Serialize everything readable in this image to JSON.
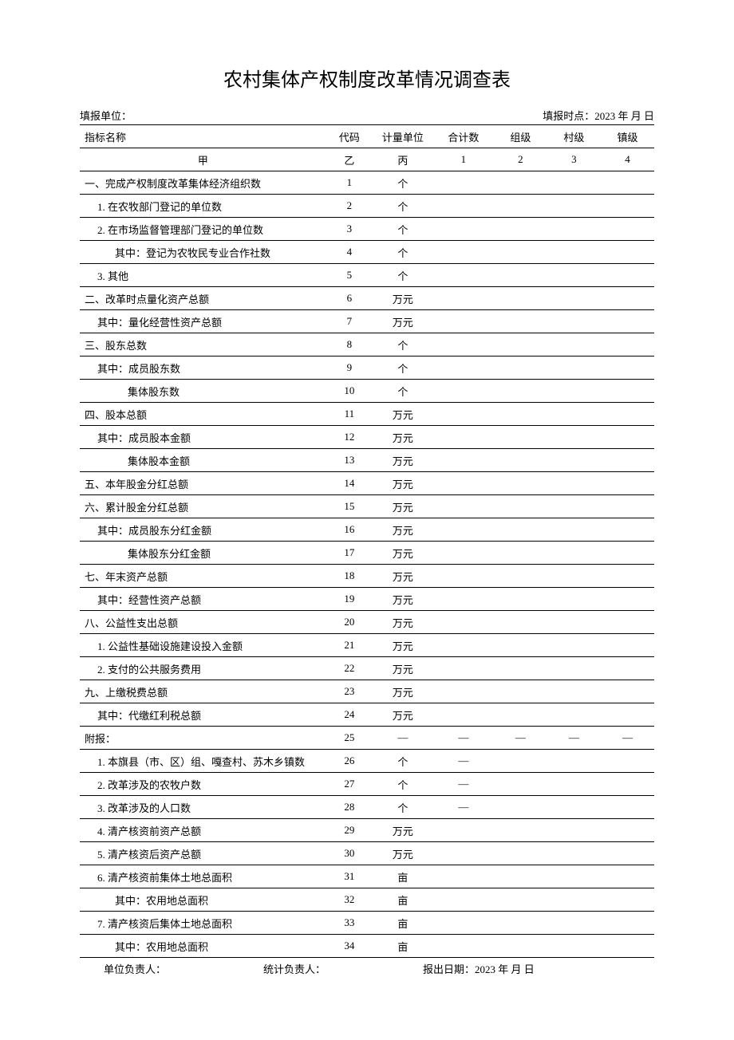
{
  "title": "农村集体产权制度改革情况调查表",
  "meta": {
    "fill_unit_label": "填报单位：",
    "fill_time_label": "填报时点：2023 年 月 日"
  },
  "header": {
    "name": "指标名称",
    "code": "代码",
    "unit": "计量单位",
    "total": "合计数",
    "group": "组级",
    "village": "村级",
    "town": "镇级"
  },
  "subheader": {
    "name": "甲",
    "code": "乙",
    "unit": "丙",
    "total": "1",
    "group": "2",
    "village": "3",
    "town": "4"
  },
  "rows": [
    {
      "name": "一、完成产权制度改革集体经济组织数",
      "code": "1",
      "unit": "个",
      "indent": "left",
      "total": "",
      "group": "",
      "village": "",
      "town": ""
    },
    {
      "name": "1. 在农牧部门登记的单位数",
      "code": "2",
      "unit": "个",
      "indent": "indent1",
      "total": "",
      "group": "",
      "village": "",
      "town": ""
    },
    {
      "name": "2. 在市场监督管理部门登记的单位数",
      "code": "3",
      "unit": "个",
      "indent": "indent1",
      "total": "",
      "group": "",
      "village": "",
      "town": ""
    },
    {
      "name": "其中：登记为农牧民专业合作社数",
      "code": "4",
      "unit": "个",
      "indent": "indent2",
      "total": "",
      "group": "",
      "village": "",
      "town": ""
    },
    {
      "name": "3. 其他",
      "code": "5",
      "unit": "个",
      "indent": "indent1",
      "total": "",
      "group": "",
      "village": "",
      "town": ""
    },
    {
      "name": "二、改革时点量化资产总额",
      "code": "6",
      "unit": "万元",
      "indent": "left",
      "total": "",
      "group": "",
      "village": "",
      "town": ""
    },
    {
      "name": "其中：量化经营性资产总额",
      "code": "7",
      "unit": "万元",
      "indent": "indent1",
      "total": "",
      "group": "",
      "village": "",
      "town": ""
    },
    {
      "name": "三、股东总数",
      "code": "8",
      "unit": "个",
      "indent": "left",
      "total": "",
      "group": "",
      "village": "",
      "town": ""
    },
    {
      "name": "其中：成员股东数",
      "code": "9",
      "unit": "个",
      "indent": "indent1",
      "total": "",
      "group": "",
      "village": "",
      "town": ""
    },
    {
      "name": "集体股东数",
      "code": "10",
      "unit": "个",
      "indent": "indent3",
      "total": "",
      "group": "",
      "village": "",
      "town": ""
    },
    {
      "name": "四、股本总额",
      "code": "11",
      "unit": "万元",
      "indent": "left",
      "total": "",
      "group": "",
      "village": "",
      "town": ""
    },
    {
      "name": "其中：成员股本金额",
      "code": "12",
      "unit": "万元",
      "indent": "indent1",
      "total": "",
      "group": "",
      "village": "",
      "town": ""
    },
    {
      "name": "集体股本金额",
      "code": "13",
      "unit": "万元",
      "indent": "indent3",
      "total": "",
      "group": "",
      "village": "",
      "town": ""
    },
    {
      "name": "五、本年股金分红总额",
      "code": "14",
      "unit": "万元",
      "indent": "left",
      "total": "",
      "group": "",
      "village": "",
      "town": ""
    },
    {
      "name": "六、累计股金分红总额",
      "code": "15",
      "unit": "万元",
      "indent": "left",
      "total": "",
      "group": "",
      "village": "",
      "town": ""
    },
    {
      "name": "其中：成员股东分红金额",
      "code": "16",
      "unit": "万元",
      "indent": "indent1",
      "total": "",
      "group": "",
      "village": "",
      "town": ""
    },
    {
      "name": "集体股东分红金额",
      "code": "17",
      "unit": "万元",
      "indent": "indent3",
      "total": "",
      "group": "",
      "village": "",
      "town": ""
    },
    {
      "name": "七、年末资产总额",
      "code": "18",
      "unit": "万元",
      "indent": "left",
      "total": "",
      "group": "",
      "village": "",
      "town": ""
    },
    {
      "name": "其中：经营性资产总额",
      "code": "19",
      "unit": "万元",
      "indent": "indent1",
      "total": "",
      "group": "",
      "village": "",
      "town": ""
    },
    {
      "name": "八、公益性支出总额",
      "code": "20",
      "unit": "万元",
      "indent": "left",
      "total": "",
      "group": "",
      "village": "",
      "town": ""
    },
    {
      "name": "1. 公益性基础设施建设投入金额",
      "code": "21",
      "unit": "万元",
      "indent": "indent1",
      "total": "",
      "group": "",
      "village": "",
      "town": ""
    },
    {
      "name": "2. 支付的公共服务费用",
      "code": "22",
      "unit": "万元",
      "indent": "indent1",
      "total": "",
      "group": "",
      "village": "",
      "town": ""
    },
    {
      "name": "九、上缴税费总额",
      "code": "23",
      "unit": "万元",
      "indent": "left",
      "total": "",
      "group": "",
      "village": "",
      "town": ""
    },
    {
      "name": "其中：代缴红利税总额",
      "code": "24",
      "unit": "万元",
      "indent": "indent1",
      "total": "",
      "group": "",
      "village": "",
      "town": ""
    },
    {
      "name": "附报：",
      "code": "25",
      "unit": "—",
      "indent": "left",
      "total": "—",
      "group": "—",
      "village": "—",
      "town": "—"
    },
    {
      "name": "1. 本旗县（市、区）组、嘎查村、苏木乡镇数",
      "code": "26",
      "unit": "个",
      "indent": "indent1",
      "total": "—",
      "group": "",
      "village": "",
      "town": ""
    },
    {
      "name": "2. 改革涉及的农牧户数",
      "code": "27",
      "unit": "个",
      "indent": "indent1",
      "total": "—",
      "group": "",
      "village": "",
      "town": ""
    },
    {
      "name": "3. 改革涉及的人口数",
      "code": "28",
      "unit": "个",
      "indent": "indent1",
      "total": "—",
      "group": "",
      "village": "",
      "town": ""
    },
    {
      "name": "4. 清产核资前资产总额",
      "code": "29",
      "unit": "万元",
      "indent": "indent1",
      "total": "",
      "group": "",
      "village": "",
      "town": ""
    },
    {
      "name": "5. 清产核资后资产总额",
      "code": "30",
      "unit": "万元",
      "indent": "indent1",
      "total": "",
      "group": "",
      "village": "",
      "town": ""
    },
    {
      "name": "6. 清产核资前集体土地总面积",
      "code": "31",
      "unit": "亩",
      "indent": "indent1",
      "total": "",
      "group": "",
      "village": "",
      "town": ""
    },
    {
      "name": "其中：农用地总面积",
      "code": "32",
      "unit": "亩",
      "indent": "indent2",
      "total": "",
      "group": "",
      "village": "",
      "town": ""
    },
    {
      "name": "7. 清产核资后集体土地总面积",
      "code": "33",
      "unit": "亩",
      "indent": "indent1",
      "total": "",
      "group": "",
      "village": "",
      "town": ""
    },
    {
      "name": "其中：农用地总面积",
      "code": "34",
      "unit": "亩",
      "indent": "indent2",
      "total": "",
      "group": "",
      "village": "",
      "town": ""
    }
  ],
  "footer": {
    "unit_leader": "单位负责人：",
    "stat_leader": "统计负责人：",
    "report_date": "报出日期：2023 年 月 日"
  },
  "style": {
    "background_color": "#ffffff",
    "border_color": "#000000",
    "title_fontsize": 24,
    "body_fontsize": 13,
    "font_family": "SimSun"
  }
}
